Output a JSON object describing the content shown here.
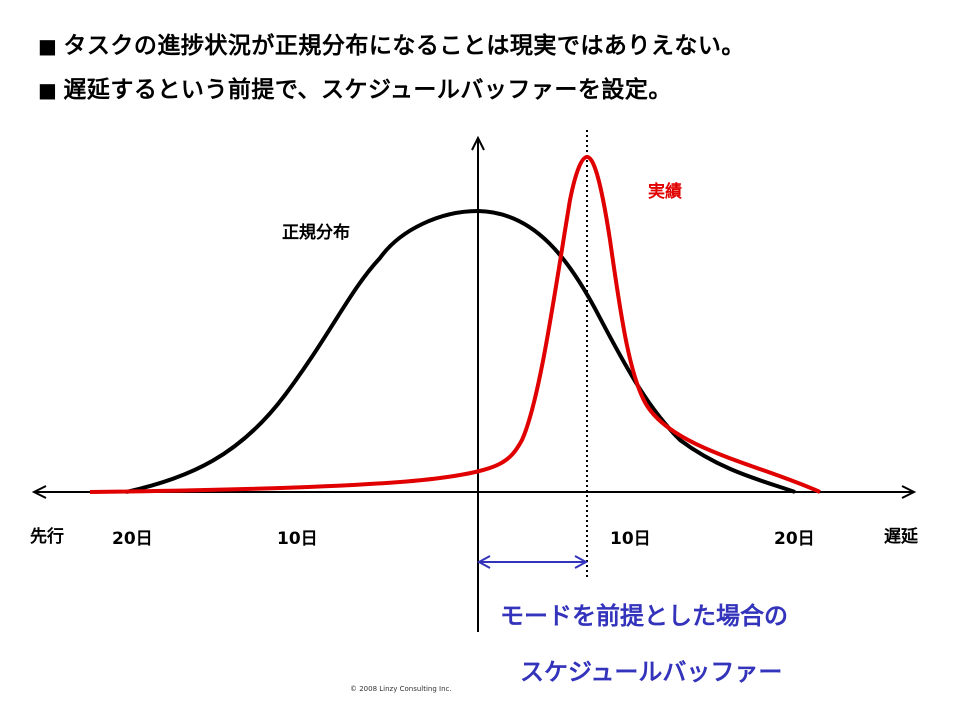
{
  "bullets": [
    {
      "mark": "■",
      "text": "タスクの進捗状況が正規分布になることは現実ではありえない。"
    },
    {
      "mark": "■",
      "text": "遅延するという前提で、スケジュールバッファーを設定。"
    }
  ],
  "axis": {
    "left_label": "先行",
    "right_label": "遅延",
    "ticks": [
      "20日",
      "10日",
      "10日",
      "20日"
    ]
  },
  "curves": {
    "normal": {
      "label": "正規分布",
      "color": "#000000"
    },
    "actual": {
      "label": "実績",
      "color": "#e00000"
    }
  },
  "buffer": {
    "color": "#3333bb",
    "label_line1": "モードを前提とした場合の",
    "label_line2": "スケジュールバッファー"
  },
  "copyright": "© 2008 Linzy Consulting Inc."
}
